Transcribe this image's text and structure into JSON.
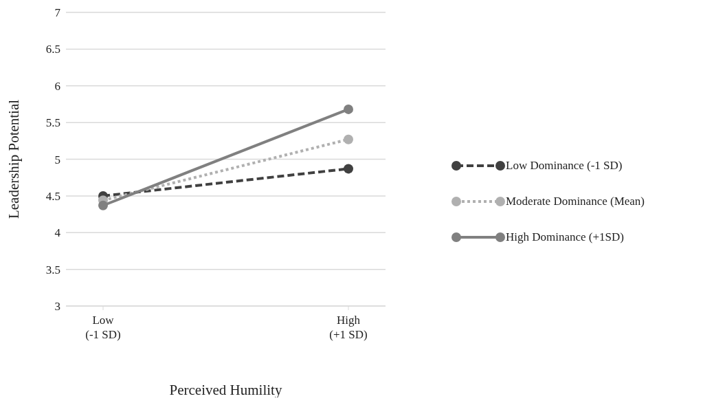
{
  "chart_data": {
    "type": "line",
    "xlabel": "Perceived Humility",
    "ylabel": "Leadership Potential",
    "categories": [
      "Low\n(-1 SD)",
      "High\n(+1 SD)"
    ],
    "series": [
      {
        "name": "Low Dominance (-1 SD)",
        "color": "#404040",
        "line_style": "dashed",
        "values": [
          4.5,
          4.87
        ]
      },
      {
        "name": "Moderate Dominance (Mean)",
        "color": "#b0b0b0",
        "line_style": "dotted",
        "values": [
          4.44,
          5.27
        ]
      },
      {
        "name": "High Dominance (+1SD)",
        "color": "#808080",
        "line_style": "solid",
        "values": [
          4.37,
          5.68
        ]
      }
    ],
    "ylim": [
      3,
      7
    ],
    "yticks": [
      3,
      3.5,
      4,
      4.5,
      5,
      5.5,
      6,
      6.5,
      7
    ],
    "grid": "y",
    "legend": "right",
    "marker": "circle"
  }
}
